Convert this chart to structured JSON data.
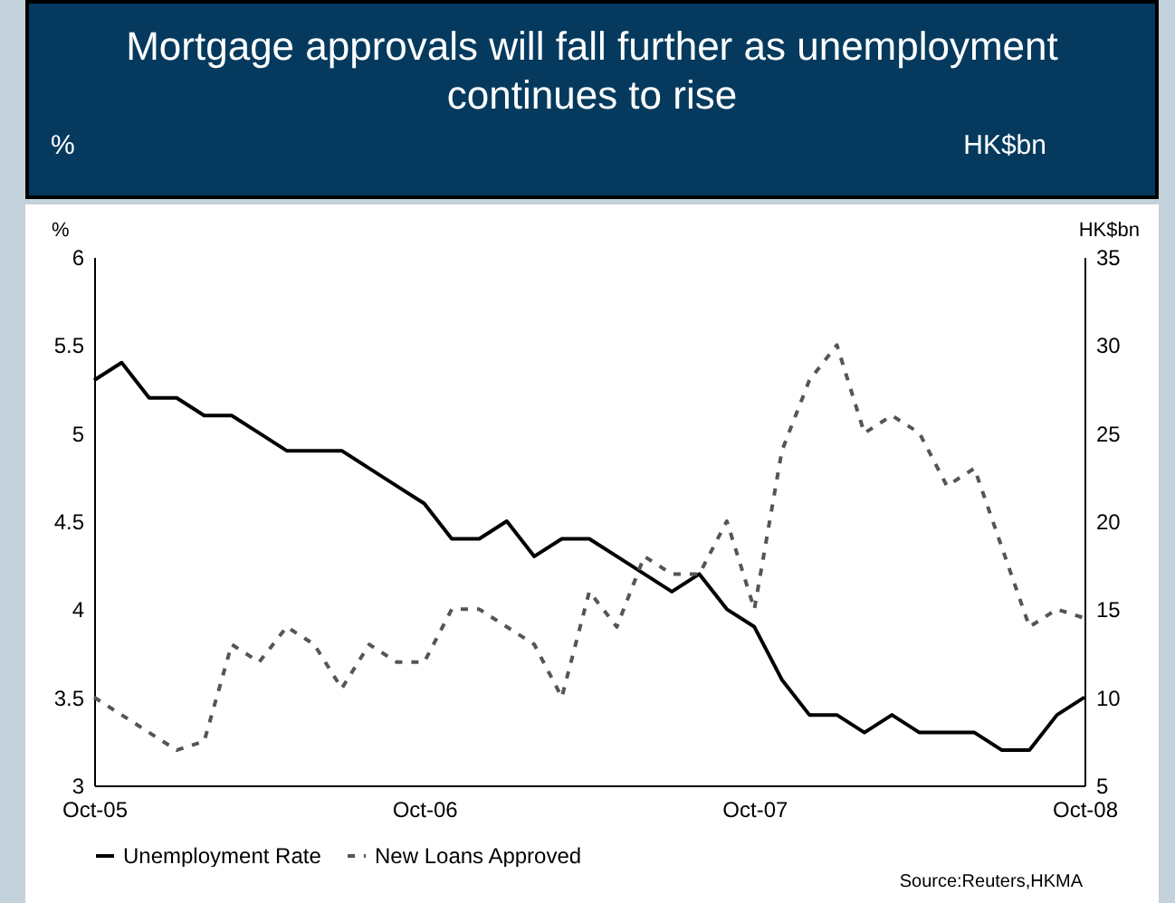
{
  "chart_data": {
    "type": "line",
    "title": "Mortgage approvals will fall further as unemployment continues to rise",
    "annotations": [
      "%",
      "HK$bn",
      "Source:Reuters,HKMA"
    ],
    "ylabel": "%",
    "y2label": "HK$bn",
    "categories": [
      "Oct-05",
      null,
      null,
      null,
      null,
      null,
      null,
      null,
      null,
      null,
      null,
      null,
      "Oct-06",
      null,
      null,
      null,
      null,
      null,
      null,
      null,
      null,
      null,
      null,
      null,
      "Oct-07",
      null,
      null,
      null,
      null,
      null,
      null,
      null,
      null,
      null,
      null,
      null,
      "Oct-08"
    ],
    "series": [
      {
        "name": "Unemployment Rate",
        "color": "#000000",
        "line_style": "solid",
        "values": [
          5.3,
          5.4,
          5.2,
          5.2,
          5.1,
          5.1,
          5.0,
          4.9,
          4.9,
          4.9,
          4.8,
          4.7,
          4.6,
          4.4,
          4.4,
          4.5,
          4.3,
          4.4,
          4.4,
          4.3,
          4.2,
          4.1,
          4.2,
          4.0,
          3.9,
          3.6,
          3.4,
          3.4,
          3.3,
          3.4,
          3.3,
          3.3,
          3.3,
          3.2,
          3.2,
          3.4,
          3.5
        ]
      },
      {
        "name": "New Loans Approved",
        "color": "#555555",
        "line_style": "dashed",
        "axis": "y2",
        "values": [
          10,
          9,
          8,
          7,
          7.5,
          13,
          12,
          14,
          13,
          10.5,
          13,
          12,
          12,
          15,
          15,
          14,
          13,
          10,
          16,
          14,
          18,
          17,
          17,
          20,
          15,
          24,
          28,
          30,
          25,
          26,
          25,
          22,
          23,
          18.5,
          14,
          15,
          14.5
        ]
      }
    ],
    "ylim": [
      3,
      6
    ],
    "yticks": [
      3,
      3.5,
      4,
      4.5,
      5,
      5.5,
      6
    ],
    "y2lim": [
      5,
      35
    ],
    "y2ticks": [
      5,
      10,
      15,
      20,
      25,
      30,
      35
    ],
    "grid": false,
    "legend": "bottom"
  }
}
